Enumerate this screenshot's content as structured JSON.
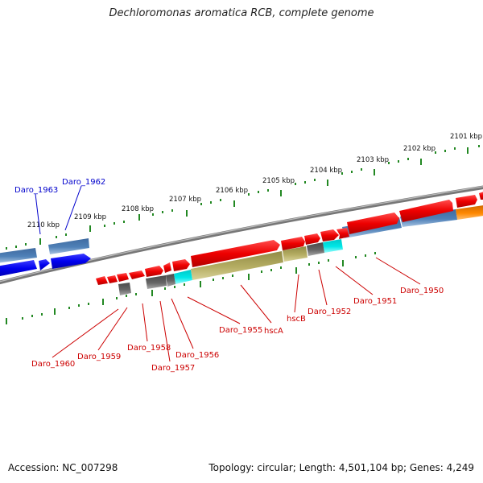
{
  "title": "Dechloromonas aromatica RCB, complete genome",
  "footer": {
    "accession": "Accession: NC_007298",
    "stats": "Topology: circular; Length: 4,501,104 bp; Genes: 4,249"
  },
  "scale_ticks": [
    "2101 kbp",
    "2102 kbp",
    "2103 kbp",
    "2104 kbp",
    "2105 kbp",
    "2106 kbp",
    "2107 kbp",
    "2108 kbp",
    "2109 kbp",
    "2110 kbp"
  ],
  "colors": {
    "red_gene": "#ee0000",
    "blue_gene": "#0000ee",
    "steelblue_gene": "#4f81b8",
    "olive_gene": "#b5ad63",
    "cyan_gene": "#00e8e8",
    "gray_gene": "#666666",
    "orange_gene": "#ff8800",
    "backbone": "#777777",
    "tick": "#228822",
    "red_label": "#cc0000",
    "blue_label": "#0000cc"
  },
  "gene_labels_top": [
    {
      "id": "Daro_1963",
      "text": "Daro_1963"
    },
    {
      "id": "Daro_1962",
      "text": "Daro_1962"
    }
  ],
  "gene_labels_bottom": [
    {
      "id": "Daro_1960",
      "text": "Daro_1960"
    },
    {
      "id": "Daro_1959",
      "text": "Daro_1959"
    },
    {
      "id": "Daro_1958",
      "text": "Daro_1958"
    },
    {
      "id": "Daro_1957",
      "text": "Daro_1957"
    },
    {
      "id": "Daro_1956",
      "text": "Daro_1956"
    },
    {
      "id": "Daro_1955",
      "text": "Daro_1955"
    },
    {
      "id": "hscA",
      "text": "hscA"
    },
    {
      "id": "hscB",
      "text": "hscB"
    },
    {
      "id": "Daro_1952",
      "text": "Daro_1952"
    },
    {
      "id": "Daro_1951",
      "text": "Daro_1951"
    },
    {
      "id": "Daro_1950",
      "text": "Daro_1950"
    }
  ]
}
